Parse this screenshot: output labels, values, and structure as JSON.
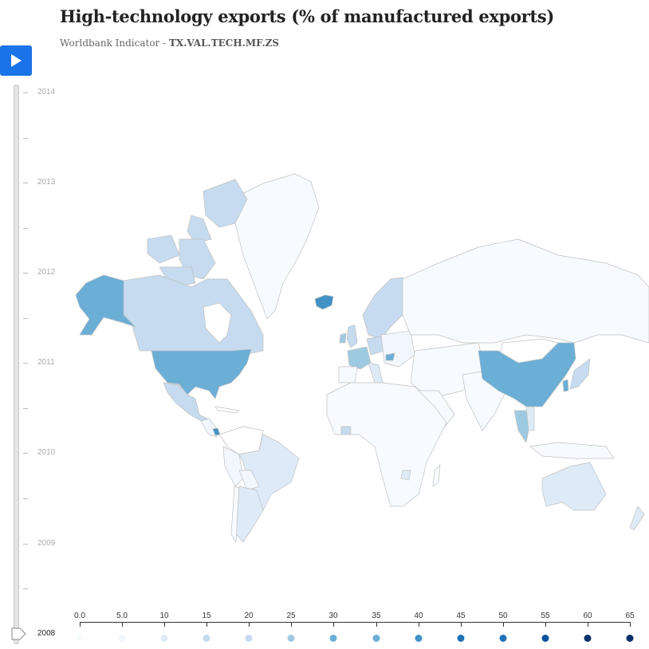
{
  "header": {
    "title": "High-technology exports (% of manufactured exports)",
    "subtitle_prefix": "Worldbank Indicator - ",
    "indicator_code": "TX.VAL.TECH.MF.ZS"
  },
  "controls": {
    "play_icon": "play-icon",
    "play_button_color": "#1a73e8"
  },
  "timeline": {
    "years": [
      "2014",
      "2013",
      "2012",
      "2011",
      "2010",
      "2009",
      "2008"
    ],
    "selected_year": "2008"
  },
  "legend": {
    "ticks": [
      "0.0",
      "5.0",
      "10",
      "15",
      "20",
      "25",
      "30",
      "35",
      "40",
      "45",
      "50",
      "55",
      "60",
      "65"
    ],
    "colors": [
      "#f7fbff",
      "#f2f7fd",
      "#deebf7",
      "#c6dbef",
      "#c6dbef",
      "#9ecae1",
      "#6baed6",
      "#6baed6",
      "#4292c6",
      "#2171b5",
      "#2171b5",
      "#08519c",
      "#08306b",
      "#08306b"
    ]
  },
  "chart_data": {
    "type": "choropleth",
    "title": "High-technology exports (% of manufactured exports)",
    "subtitle": "Worldbank Indicator - TX.VAL.TECH.MF.ZS",
    "year": 2008,
    "scale": {
      "min": 0,
      "max": 65,
      "step": 5
    },
    "regions": [
      {
        "name": "United States",
        "approx_value": 28,
        "color": "#6baed6"
      },
      {
        "name": "China",
        "approx_value": 28,
        "color": "#6baed6"
      },
      {
        "name": "Iceland",
        "approx_value": 35,
        "color": "#4292c6"
      },
      {
        "name": "Costa Rica",
        "approx_value": 40,
        "color": "#4292c6"
      },
      {
        "name": "Canada",
        "approx_value": 15,
        "color": "#c6dbef"
      },
      {
        "name": "Mexico",
        "approx_value": 18,
        "color": "#c6dbef"
      },
      {
        "name": "France",
        "approx_value": 22,
        "color": "#9ecae1"
      },
      {
        "name": "Sweden",
        "approx_value": 15,
        "color": "#c6dbef"
      },
      {
        "name": "Finland",
        "approx_value": 18,
        "color": "#c6dbef"
      },
      {
        "name": "Norway",
        "approx_value": 16,
        "color": "#c6dbef"
      },
      {
        "name": "United Kingdom",
        "approx_value": 18,
        "color": "#c6dbef"
      },
      {
        "name": "Ireland",
        "approx_value": 25,
        "color": "#9ecae1"
      },
      {
        "name": "Japan",
        "approx_value": 18,
        "color": "#c6dbef"
      },
      {
        "name": "South Korea",
        "approx_value": 30,
        "color": "#6baed6"
      },
      {
        "name": "Thailand",
        "approx_value": 25,
        "color": "#9ecae1"
      },
      {
        "name": "Australia",
        "approx_value": 10,
        "color": "#deebf7"
      },
      {
        "name": "Brazil",
        "approx_value": 10,
        "color": "#deebf7"
      },
      {
        "name": "Argentina",
        "approx_value": 8,
        "color": "#deebf7"
      },
      {
        "name": "Russia",
        "approx_value": 5,
        "color": "#f2f7fd"
      },
      {
        "name": "Greenland",
        "approx_value": 3,
        "color": "#f7fbff"
      }
    ]
  }
}
